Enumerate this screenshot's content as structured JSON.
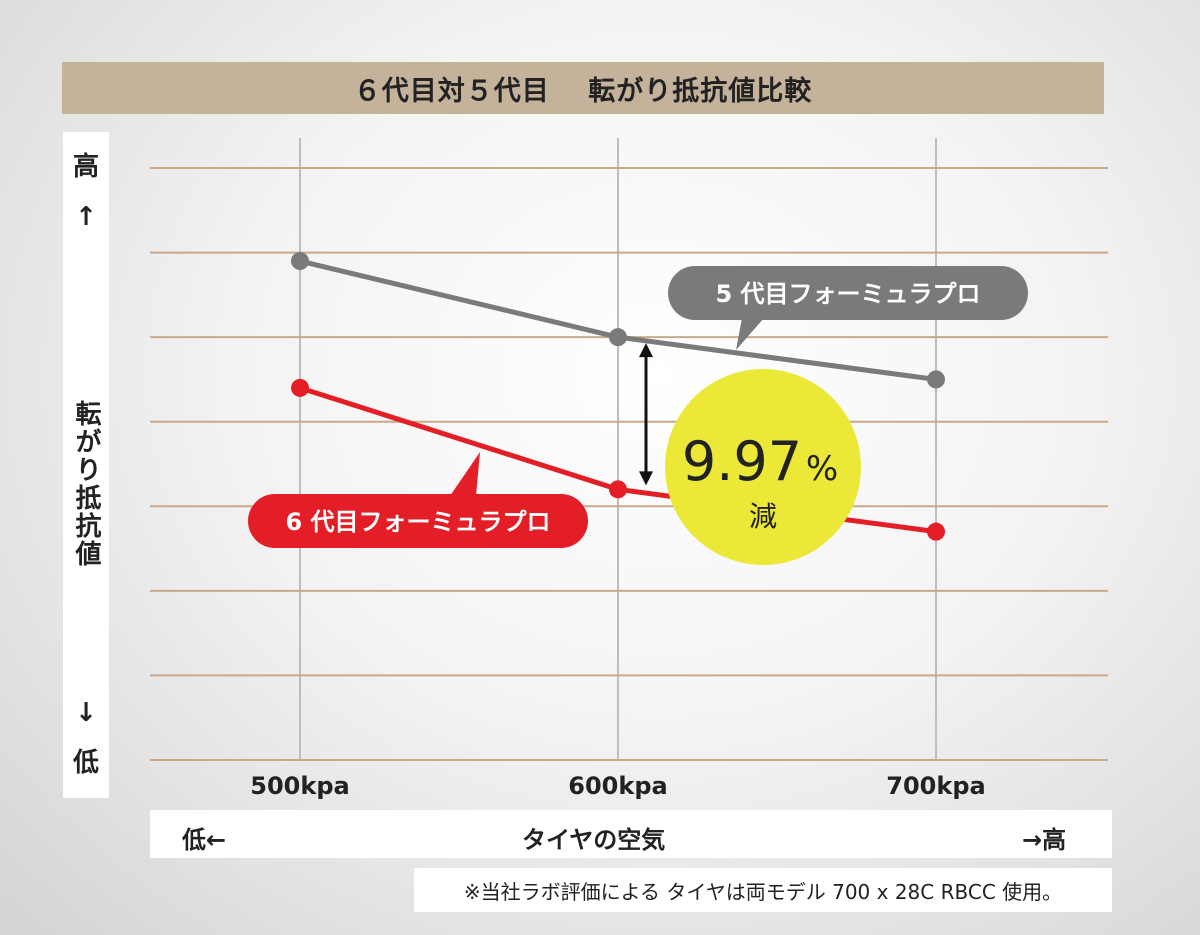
{
  "title": "６代目対５代目　 転がり抵抗値比較",
  "y_axis": {
    "high": "高",
    "up_arrow": "↑",
    "label": "転がり抵抗値",
    "down_arrow": "↓",
    "low": "低"
  },
  "x_axis": {
    "low": "低←",
    "label": "タイヤの空気",
    "high": "→高"
  },
  "note": "※当社ラボ評価による タイヤは両モデル 700 x 28C RBCC 使用。",
  "badge": {
    "value": "9.97",
    "unit": "%",
    "text": "減"
  },
  "chart_data": {
    "type": "line",
    "categories": [
      "500kpa",
      "600kpa",
      "700kpa"
    ],
    "ylim": [
      0,
      7
    ],
    "grid": true,
    "series": [
      {
        "name": "5 代目フォーミュラプロ",
        "color": "#7a7a7a",
        "values": [
          5.9,
          5.0,
          4.5
        ]
      },
      {
        "name": "6 代目フォーミュラプロ",
        "color": "#e41e26",
        "values": [
          4.4,
          3.2,
          2.7
        ]
      }
    ],
    "annotation": "9.97% 減"
  },
  "colors": {
    "grid": "#c9a98a",
    "vgrid": "#bdbdbd",
    "badge": "#ebe837",
    "title_bg": "#c4b29a"
  }
}
